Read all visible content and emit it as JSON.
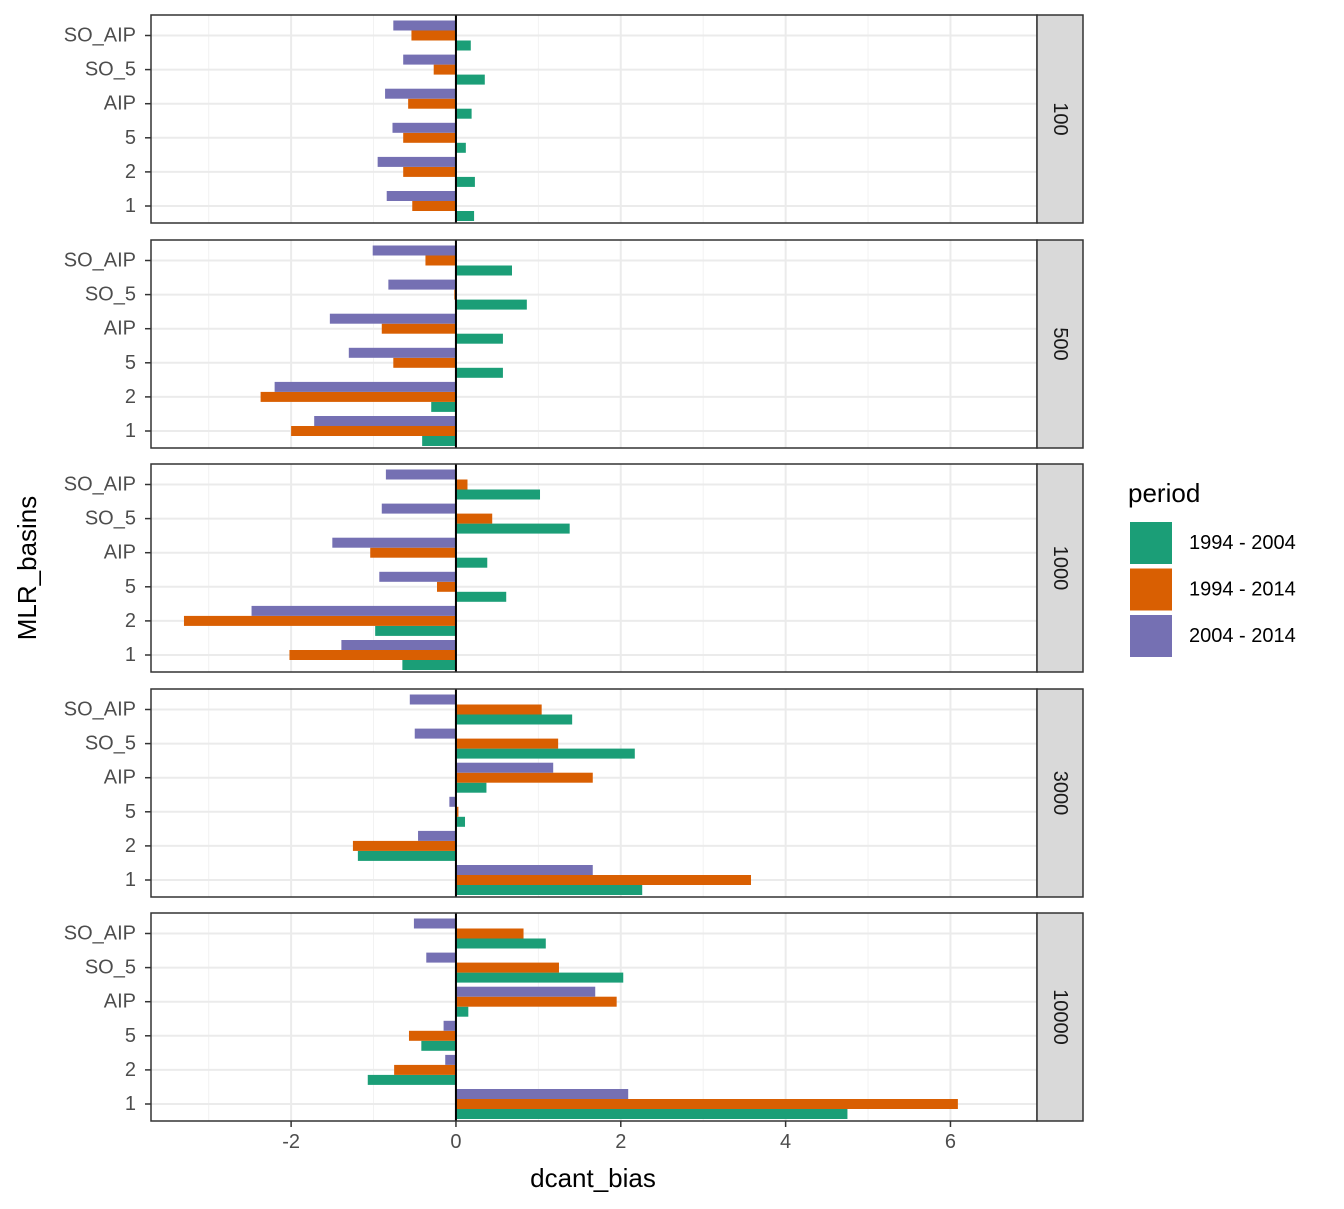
{
  "chart_data": {
    "type": "bar",
    "orientation": "horizontal",
    "xlabel": "dcant_bias",
    "ylabel": "MLR_basins",
    "xlim": [
      -3.7,
      7.05
    ],
    "x_ticks": [
      -2,
      0,
      2,
      4,
      6
    ],
    "x_tick_labels": [
      "-2",
      "0",
      "2",
      "4",
      "6"
    ],
    "grid": true,
    "categories": [
      "1",
      "2",
      "5",
      "AIP",
      "SO_5",
      "SO_AIP"
    ],
    "legend": {
      "title": "period",
      "placement": "right",
      "entries": [
        "1994 - 2004",
        "1994 - 2014",
        "2004 - 2014"
      ]
    },
    "colors": {
      "1994 - 2004": "#1b9e77",
      "1994 - 2014": "#d95f02",
      "2004 - 2014": "#7570b3"
    },
    "facets": [
      {
        "label": "100",
        "series": [
          {
            "name": "1994 - 2004",
            "values": [
              0.22,
              0.23,
              0.12,
              0.19,
              0.35,
              0.18
            ]
          },
          {
            "name": "1994 - 2014",
            "values": [
              -0.53,
              -0.64,
              -0.64,
              -0.58,
              -0.27,
              -0.54
            ]
          },
          {
            "name": "2004 - 2014",
            "values": [
              -0.84,
              -0.95,
              -0.77,
              -0.86,
              -0.64,
              -0.76
            ]
          }
        ]
      },
      {
        "label": "500",
        "series": [
          {
            "name": "1994 - 2004",
            "values": [
              -0.41,
              -0.3,
              0.57,
              0.57,
              0.86,
              0.68
            ]
          },
          {
            "name": "1994 - 2014",
            "values": [
              -2.0,
              -2.37,
              -0.76,
              -0.9,
              -0.02,
              -0.37
            ]
          },
          {
            "name": "2004 - 2014",
            "values": [
              -1.72,
              -2.2,
              -1.3,
              -1.53,
              -0.82,
              -1.01
            ]
          }
        ]
      },
      {
        "label": "1000",
        "series": [
          {
            "name": "1994 - 2004",
            "values": [
              -0.65,
              -0.98,
              0.61,
              0.38,
              1.38,
              1.02
            ]
          },
          {
            "name": "1994 - 2014",
            "values": [
              -2.02,
              -3.3,
              -0.23,
              -1.04,
              0.44,
              0.14
            ]
          },
          {
            "name": "2004 - 2014",
            "values": [
              -1.39,
              -2.48,
              -0.93,
              -1.5,
              -0.9,
              -0.85
            ]
          }
        ]
      },
      {
        "label": "3000",
        "series": [
          {
            "name": "1994 - 2004",
            "values": [
              2.26,
              -1.19,
              0.11,
              0.37,
              2.17,
              1.41
            ]
          },
          {
            "name": "1994 - 2014",
            "values": [
              3.58,
              -1.25,
              0.03,
              1.66,
              1.24,
              1.04
            ]
          },
          {
            "name": "2004 - 2014",
            "values": [
              1.66,
              -0.46,
              -0.08,
              1.18,
              -0.5,
              -0.56
            ]
          }
        ]
      },
      {
        "label": "10000",
        "series": [
          {
            "name": "1994 - 2004",
            "values": [
              4.75,
              -1.07,
              -0.42,
              0.15,
              2.03,
              1.09
            ]
          },
          {
            "name": "1994 - 2014",
            "values": [
              6.09,
              -0.75,
              -0.57,
              1.95,
              1.25,
              0.82
            ]
          },
          {
            "name": "2004 - 2014",
            "values": [
              2.09,
              -0.13,
              -0.15,
              1.69,
              -0.36,
              -0.51
            ]
          }
        ]
      }
    ]
  }
}
